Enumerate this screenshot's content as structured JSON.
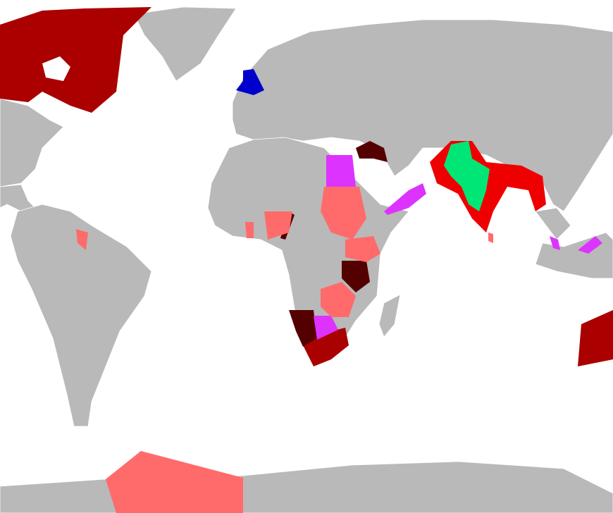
{
  "map": {
    "colors": {
      "ocean": "#ffffff",
      "land": "#b9b9b9",
      "borders": "#ffffff",
      "dominion": "#aa0000",
      "colony": "#ff6b6b",
      "raj": "#ee0000",
      "princely_states": "#00e676",
      "protectorate": "#dd33ff",
      "mandate": "#550000",
      "united_kingdom": "#0000cc"
    }
  }
}
